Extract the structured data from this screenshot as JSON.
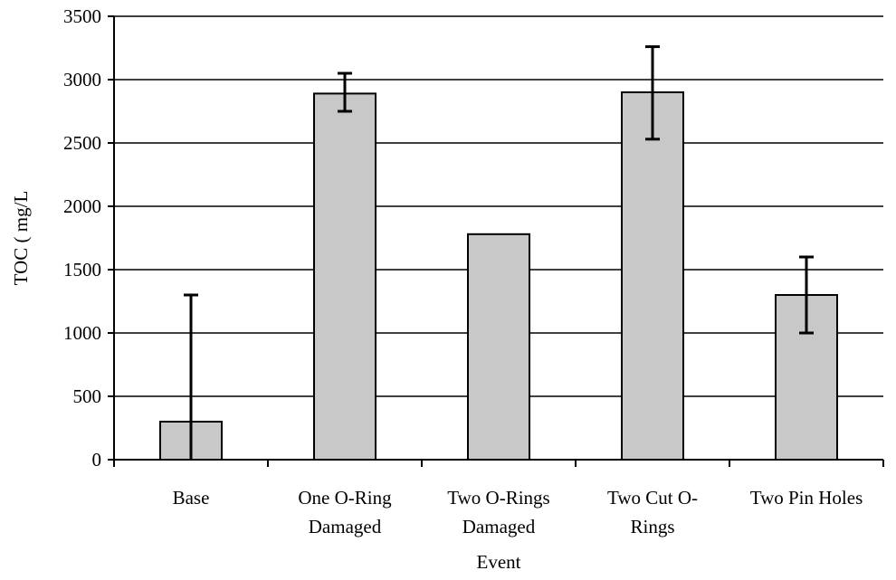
{
  "chart_data": {
    "type": "bar",
    "title": "",
    "xlabel": "Event",
    "ylabel": "TOC ( mg/L",
    "ylim": [
      0,
      3500
    ],
    "yticks": [
      0,
      500,
      1000,
      1500,
      2000,
      2500,
      3000,
      3500
    ],
    "grid": true,
    "legend": "none",
    "bar_color": "#c8c8c8",
    "bar_edge_color": "#000000",
    "categories": [
      [
        "Base"
      ],
      [
        "One O-Ring",
        "Damaged"
      ],
      [
        "Two O-Rings",
        "Damaged"
      ],
      [
        "Two Cut O-",
        "Rings"
      ],
      [
        "Two Pin Holes"
      ]
    ],
    "values": [
      300,
      2890,
      1780,
      2900,
      1300
    ],
    "error_low": [
      0,
      2750,
      null,
      2530,
      1000
    ],
    "error_high": [
      1300,
      3050,
      null,
      3260,
      1600
    ]
  }
}
